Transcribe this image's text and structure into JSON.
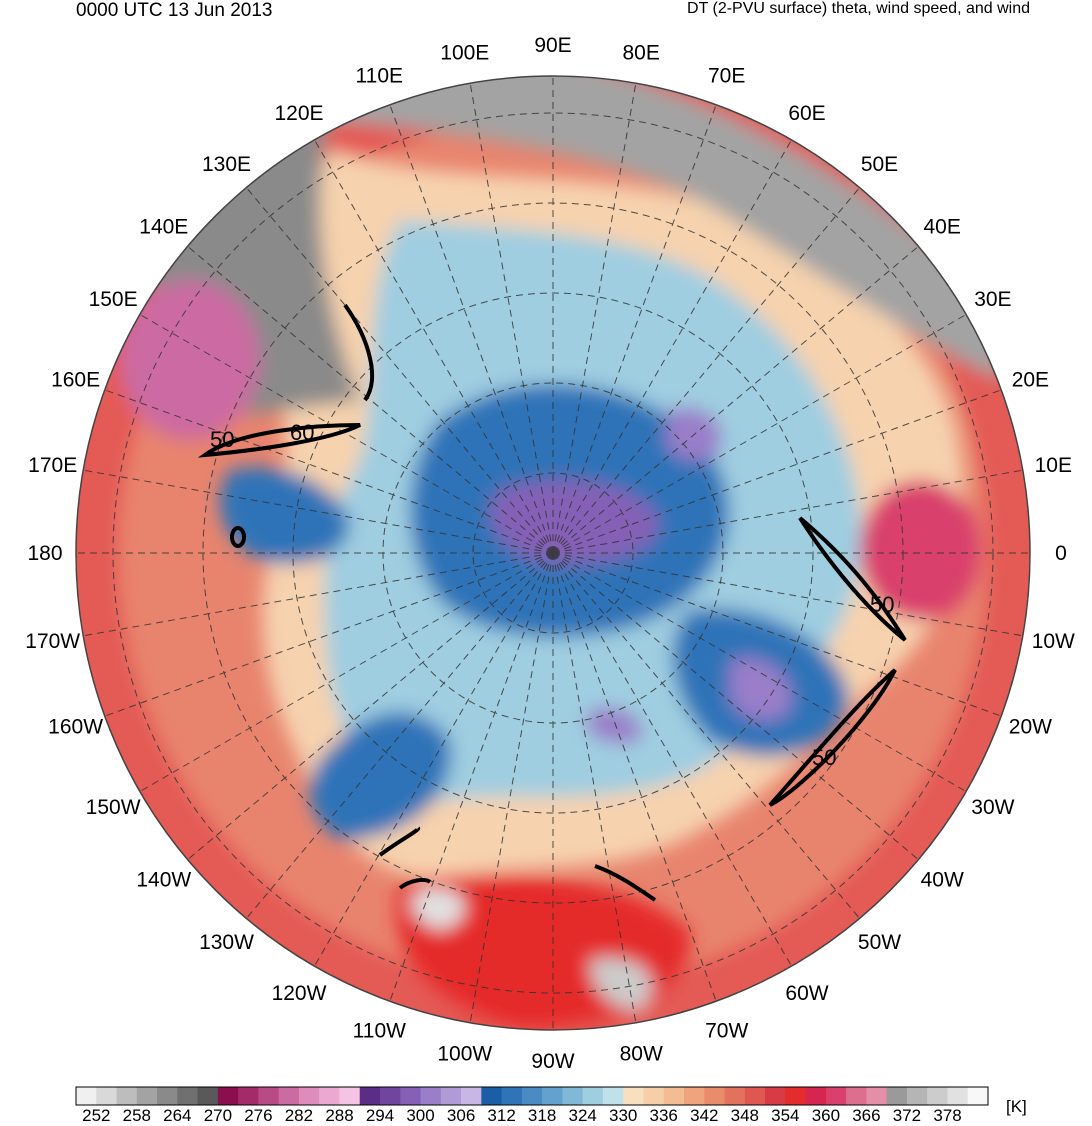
{
  "header": {
    "left_title": "0000 UTC 13 Jun 2013",
    "right_title": "DT (2-PVU surface) theta, wind speed, and wind"
  },
  "map": {
    "projection": "north polar stereographic",
    "longitude_labels": [
      "90E",
      "80E",
      "70E",
      "60E",
      "50E",
      "40E",
      "30E",
      "20E",
      "10E",
      "0",
      "10W",
      "20W",
      "30W",
      "40W",
      "50W",
      "60W",
      "70W",
      "80W",
      "90W",
      "100W",
      "110W",
      "120W",
      "130W",
      "140W",
      "150W",
      "160W",
      "170W",
      "180",
      "170E",
      "160E",
      "150E",
      "140E",
      "130E",
      "120E",
      "110E",
      "100E"
    ],
    "wind_speed_contour_labels": [
      "50",
      "60",
      "50",
      "50"
    ]
  },
  "colorbar": {
    "unit": "[K]",
    "tick_labels": [
      "252",
      "258",
      "264",
      "270",
      "276",
      "282",
      "288",
      "294",
      "300",
      "306",
      "312",
      "318",
      "324",
      "330",
      "336",
      "342",
      "348",
      "354",
      "360",
      "366",
      "372",
      "378"
    ],
    "colors": [
      "#f0f0f0",
      "#d9d9d9",
      "#bdbdbd",
      "#a3a3a3",
      "#8a8a8a",
      "#707070",
      "#595959",
      "#8b0f4e",
      "#a52a6a",
      "#b94a88",
      "#cc6aa3",
      "#de8cbc",
      "#eba9d2",
      "#f5c3e4",
      "#5a2d86",
      "#6f45a0",
      "#8560b6",
      "#9a7ec9",
      "#b19ad8",
      "#c8b6e6",
      "#1b5ea8",
      "#2f73b8",
      "#4a8ac5",
      "#63a2cf",
      "#80b9d8",
      "#9fcee1",
      "#bfe1e9",
      "#f7dfc0",
      "#f6cfa8",
      "#f4bc93",
      "#f0a47e",
      "#ea8c6c",
      "#e4715d",
      "#de5751",
      "#d93b45",
      "#e52b2b",
      "#d8254f",
      "#d9406c",
      "#de6e8e",
      "#e48ea8",
      "#9a9a9a",
      "#b5b5b5",
      "#cccccc",
      "#e1e1e1",
      "#f8f8f8"
    ]
  }
}
